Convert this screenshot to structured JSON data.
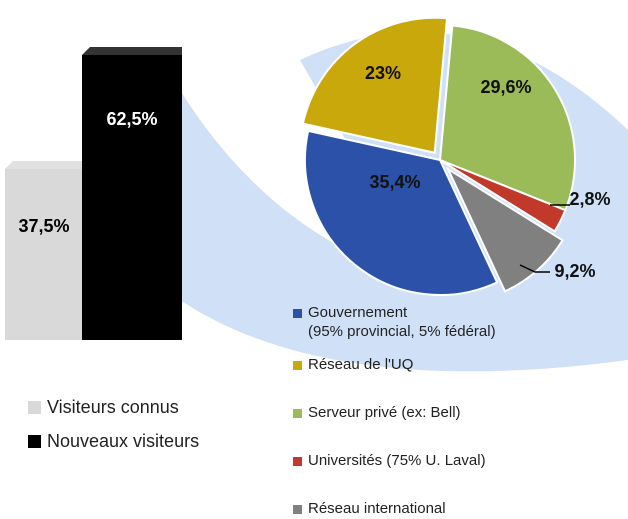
{
  "chart_data": [
    {
      "type": "bar",
      "categories": [
        "Visiteurs connus",
        "Nouveaux visiteurs"
      ],
      "values": [
        37.5,
        62.5
      ],
      "value_labels": [
        "37,5%",
        "62,5%"
      ],
      "colors": [
        "#d9d9d9",
        "#000000"
      ],
      "label_colors": [
        "#000000",
        "#ffffff"
      ]
    },
    {
      "type": "pie",
      "categories": [
        "Gouvernement\n(95% provincial, 5% fédéral)",
        "Réseau de l'UQ",
        "Serveur privé (ex: Bell)",
        "Universités (75% U. Laval)",
        "Réseau international"
      ],
      "values": [
        35.4,
        23,
        29.6,
        2.8,
        9.2
      ],
      "value_labels": [
        "35,4%",
        "23%",
        "29,6%",
        "2,8%",
        "9,2%"
      ],
      "colors": [
        "#2b52a8",
        "#c9a80c",
        "#9bbb59",
        "#c0392b",
        "#808080"
      ]
    }
  ]
}
